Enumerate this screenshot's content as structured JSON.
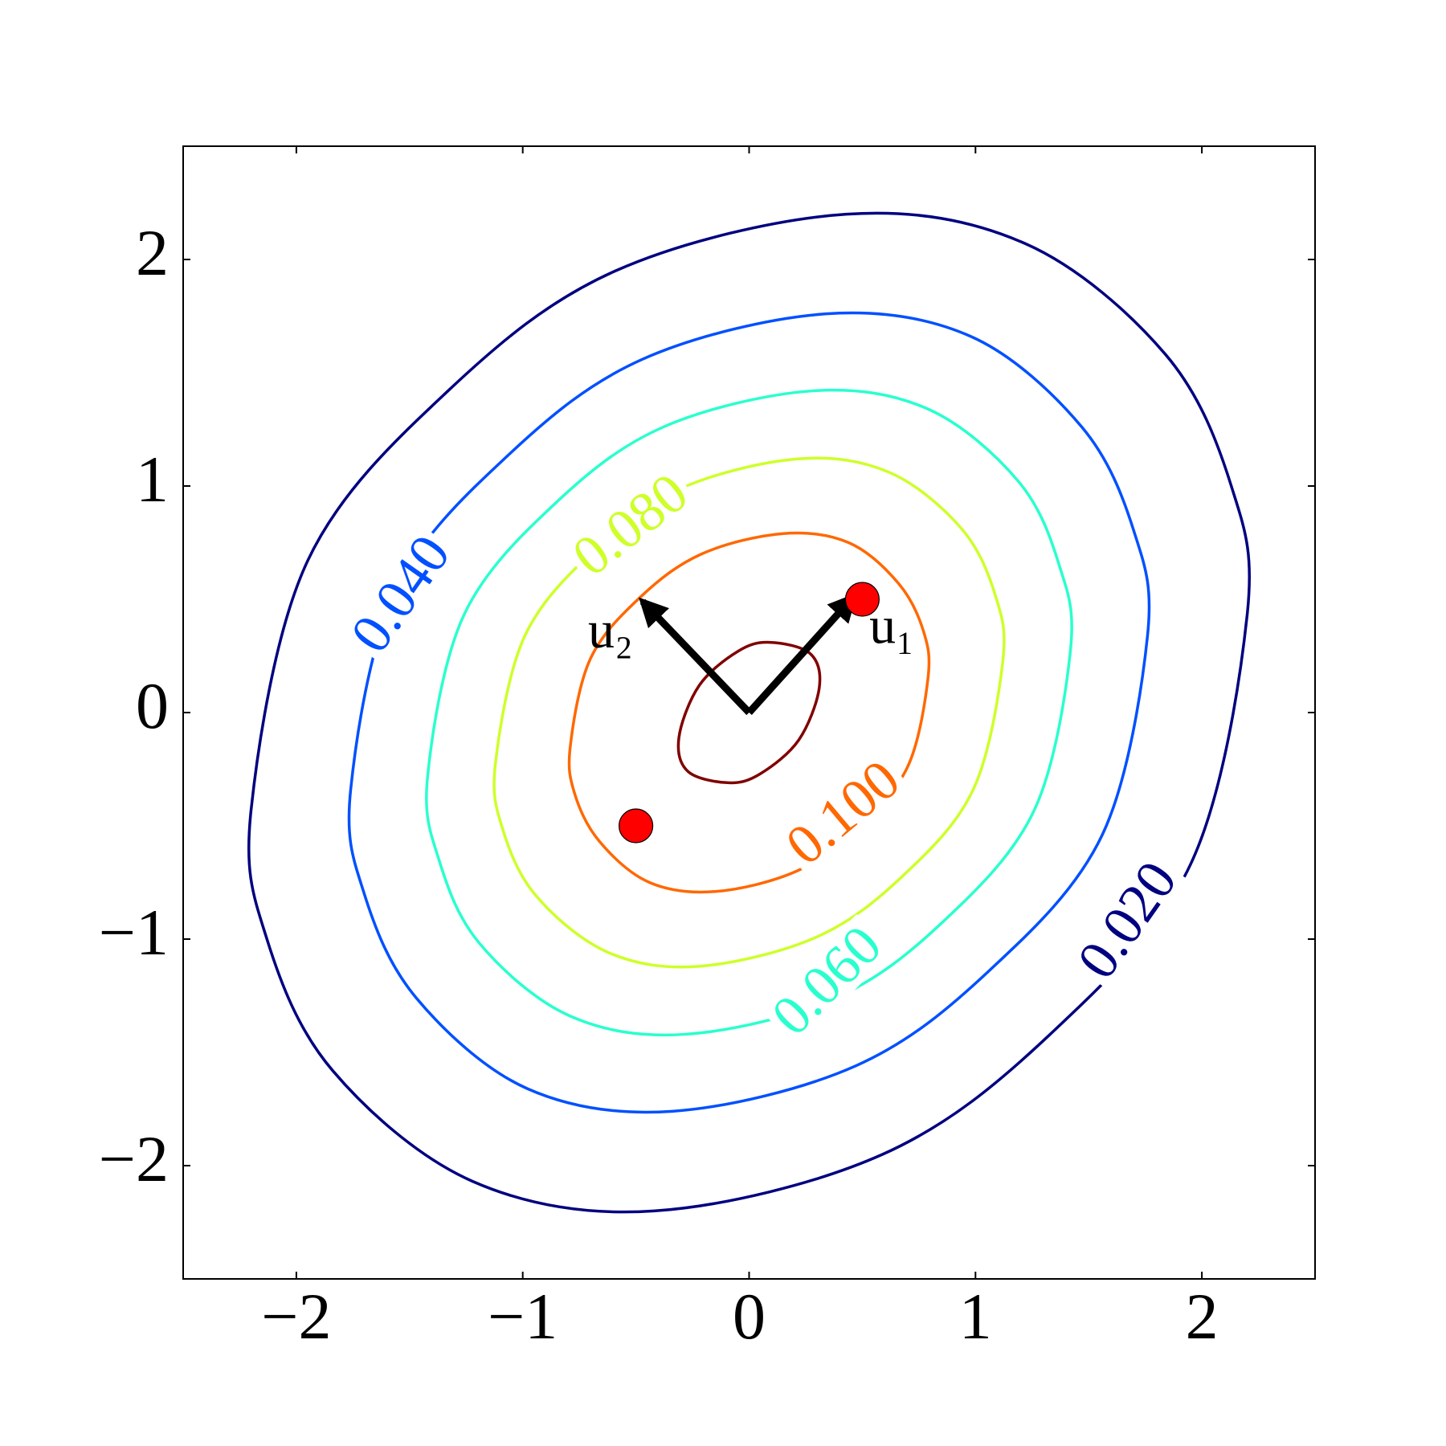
{
  "chart_data": {
    "type": "contour",
    "xlim": [
      -2.5,
      2.5
    ],
    "ylim": [
      -2.5,
      2.5
    ],
    "xticks": [
      {
        "value": -2,
        "label": "−2"
      },
      {
        "value": -1,
        "label": "−1"
      },
      0,
      1,
      2
    ],
    "yticks": [
      {
        "value": -2,
        "label": "−2"
      },
      {
        "value": -1,
        "label": "−1"
      },
      0,
      1,
      2
    ],
    "contours": [
      {
        "label": "0.020",
        "color": "#000080",
        "x": [
          -2.2,
          -1.95,
          -1.33,
          -0.59,
          0.43,
          1.22,
          1.84,
          2.13,
          2.2,
          1.95,
          1.33,
          0.59,
          -0.42,
          -1.22,
          -1.84,
          -2.13
        ],
        "y": [
          -0.43,
          0.67,
          1.42,
          1.95,
          2.2,
          2.07,
          1.58,
          1.0,
          0.43,
          -0.67,
          -1.42,
          -1.95,
          -2.2,
          -2.07,
          -1.58,
          -1.0
        ]
      },
      {
        "label": "0.040",
        "color": "#0050ff",
        "x": [
          -1.76,
          -1.56,
          -1.06,
          -0.47,
          0.34,
          0.98,
          1.47,
          1.7,
          1.76,
          1.56,
          1.06,
          0.47,
          -0.34,
          -0.98,
          -1.47,
          -1.7
        ],
        "y": [
          -0.34,
          0.54,
          1.14,
          1.56,
          1.76,
          1.66,
          1.26,
          0.8,
          0.34,
          -0.54,
          -1.14,
          -1.56,
          -1.76,
          -1.66,
          -1.26,
          -0.8
        ]
      },
      {
        "label": "0.060",
        "color": "#29ffce",
        "x": [
          -1.42,
          -1.26,
          -0.86,
          -0.38,
          0.28,
          0.79,
          1.19,
          1.37,
          1.42,
          1.26,
          0.86,
          0.38,
          -0.28,
          -0.79,
          -1.19,
          -1.37
        ],
        "y": [
          -0.28,
          0.43,
          0.92,
          1.26,
          1.42,
          1.34,
          1.02,
          0.65,
          0.28,
          -0.43,
          -0.92,
          -1.26,
          -1.42,
          -1.34,
          -1.02,
          -0.65
        ]
      },
      {
        "label": "0.080",
        "color": "#ceff29",
        "x": [
          -1.12,
          -0.99,
          -0.68,
          -0.3,
          0.22,
          0.62,
          0.94,
          1.09,
          1.12,
          0.99,
          0.68,
          0.3,
          -0.22,
          -0.62,
          -0.94,
          -1.09
        ],
        "y": [
          -0.22,
          0.34,
          0.72,
          0.99,
          1.12,
          1.06,
          0.81,
          0.51,
          0.22,
          -0.34,
          -0.72,
          -0.99,
          -1.12,
          -1.06,
          -0.81,
          -0.51
        ]
      },
      {
        "label": "0.100",
        "color": "#ff6800",
        "x": [
          -0.79,
          -0.7,
          -0.48,
          -0.21,
          0.15,
          0.44,
          0.66,
          0.77,
          0.79,
          0.7,
          0.48,
          0.21,
          -0.15,
          -0.44,
          -0.66,
          -0.77
        ],
        "y": [
          -0.15,
          0.24,
          0.51,
          0.7,
          0.79,
          0.75,
          0.57,
          0.36,
          0.15,
          -0.24,
          -0.51,
          -0.7,
          -0.79,
          -0.75,
          -0.57,
          -0.36
        ]
      },
      {
        "color": "#800000",
        "x": [
          -0.31,
          -0.22,
          -0.05,
          0.09,
          0.27,
          0.31,
          0.22,
          0.05,
          -0.09,
          -0.27
        ],
        "y": [
          -0.11,
          0.12,
          0.27,
          0.31,
          0.26,
          0.11,
          -0.12,
          -0.27,
          -0.31,
          -0.26
        ]
      }
    ],
    "points": {
      "x": [
        0.5,
        -0.5
      ],
      "y": [
        0.5,
        -0.5
      ],
      "color": "#ff0000"
    },
    "arrows": [
      {
        "label": "u₁",
        "x": [
          0,
          0.46
        ],
        "y": [
          0,
          0.51
        ]
      },
      {
        "label": "u₂",
        "x": [
          0,
          -0.47
        ],
        "y": [
          0,
          0.49
        ]
      }
    ]
  }
}
